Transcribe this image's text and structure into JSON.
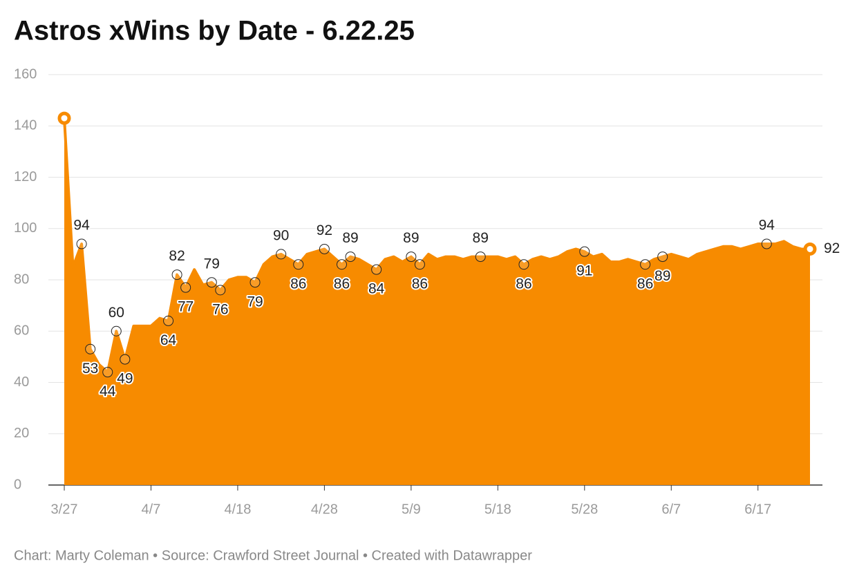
{
  "chart_data": {
    "type": "area",
    "title": "Astros xWins by Date - 6.22.25",
    "footer": "Chart: Marty Coleman • Source: Crawford Street Journal • Created with Datawrapper",
    "color": "#f78b00",
    "categories": [
      "3/27",
      null,
      null,
      null,
      null,
      null,
      null,
      null,
      null,
      null,
      "4/7",
      null,
      null,
      null,
      null,
      null,
      null,
      null,
      null,
      null,
      "4/18",
      null,
      null,
      null,
      null,
      null,
      null,
      null,
      null,
      null,
      "4/28",
      null,
      null,
      null,
      null,
      null,
      null,
      null,
      null,
      null,
      "5/9",
      null,
      null,
      null,
      null,
      null,
      null,
      null,
      null,
      null,
      "5/18",
      null,
      null,
      null,
      null,
      null,
      null,
      null,
      null,
      null,
      "5/28",
      null,
      null,
      null,
      null,
      null,
      null,
      null,
      null,
      null,
      "6/7",
      null,
      null,
      null,
      null,
      null,
      null,
      null,
      null,
      null,
      "6/17",
      null,
      null,
      null,
      null,
      null,
      null
    ],
    "values": [
      143,
      85,
      94,
      53,
      47,
      44,
      60,
      49,
      62,
      62,
      62,
      65,
      64,
      82,
      77,
      84,
      78,
      79,
      76,
      80,
      81,
      81,
      79,
      86,
      89,
      90,
      88,
      86,
      90,
      91,
      92,
      89,
      86,
      89,
      88,
      86,
      84,
      88,
      89,
      87,
      89,
      86,
      90,
      88,
      89,
      89,
      88,
      89,
      89,
      89,
      89,
      88,
      89,
      86,
      88,
      89,
      88,
      89,
      91,
      92,
      91,
      89,
      90,
      87,
      87,
      88,
      87,
      86,
      88,
      89,
      90,
      89,
      88,
      90,
      91,
      92,
      93,
      93,
      92,
      93,
      94,
      94,
      94,
      95,
      93,
      92,
      92
    ],
    "labeled_points": [
      2,
      3,
      5,
      6,
      7,
      12,
      13,
      14,
      17,
      18,
      22,
      25,
      27,
      30,
      32,
      33,
      36,
      40,
      41,
      48,
      53,
      60,
      67,
      69,
      81,
      86
    ],
    "ylim": [
      0,
      160
    ],
    "yticks": [
      0,
      20,
      40,
      60,
      80,
      100,
      120,
      140,
      160
    ],
    "grid": true
  }
}
